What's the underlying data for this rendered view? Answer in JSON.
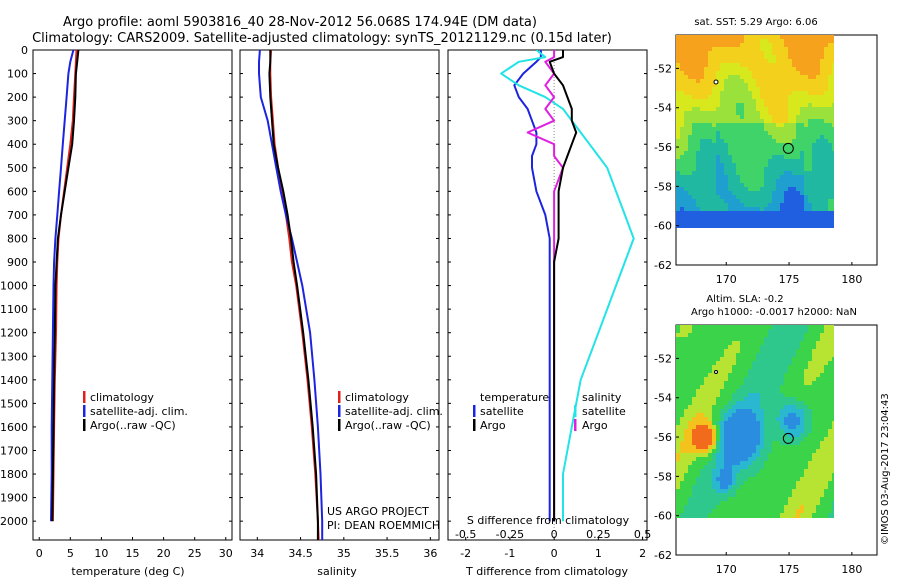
{
  "header": {
    "title_line1": "Argo profile: aoml 5903816_40 28-Nov-2012 56.068S 174.94E (DM data)",
    "title_line2": "Climatology: CARS2009. Satellite-adjusted climatology: synTS_20121129.nc (0.15d later)"
  },
  "colors": {
    "climatology": "#e0201a",
    "satellite": "#1c24e0",
    "argo": "#000000",
    "sal_satellite": "#22e3e6",
    "sal_argo": "#e020e0"
  },
  "chart_data": [
    {
      "id": "temperature",
      "type": "line",
      "xlabel": "temperature (deg C)",
      "ylabel": "",
      "xlim": [
        -1,
        31
      ],
      "ylim": [
        2080,
        0
      ],
      "xticks": [
        "0",
        "5",
        "10",
        "15",
        "20",
        "25",
        "30"
      ],
      "yticks": [
        "0",
        "100",
        "200",
        "300",
        "400",
        "500",
        "600",
        "700",
        "800",
        "900",
        "1000",
        "1100",
        "1200",
        "1300",
        "1400",
        "1500",
        "1600",
        "1700",
        "1800",
        "1900",
        "2000"
      ],
      "depth": [
        0,
        50,
        100,
        200,
        300,
        400,
        500,
        600,
        700,
        800,
        900,
        1000,
        1200,
        1400,
        1600,
        1800,
        2000
      ],
      "series": [
        {
          "name": "climatology",
          "values": [
            6.0,
            5.9,
            5.8,
            5.6,
            5.4,
            5.0,
            4.5,
            4.0,
            3.5,
            3.1,
            2.9,
            2.8,
            2.7,
            2.5,
            2.4,
            2.3,
            2.2
          ]
        },
        {
          "name": "satellite-adj. clim.",
          "values": [
            5.5,
            5.0,
            4.7,
            4.4,
            4.1,
            3.8,
            3.5,
            3.2,
            2.9,
            2.6,
            2.4,
            2.3,
            2.2,
            2.1,
            2.0,
            2.0,
            1.9
          ]
        },
        {
          "name": "Argo(..raw -QC)",
          "values": [
            6.3,
            6.1,
            5.9,
            5.8,
            5.6,
            5.3,
            4.7,
            4.1,
            3.5,
            3.0,
            2.8,
            2.6,
            2.5,
            2.4,
            2.3,
            2.2,
            2.1
          ]
        }
      ],
      "legend": {
        "items": [
          "climatology",
          "satellite-adj. clim.",
          "Argo(..raw -QC)"
        ],
        "position": "lower-right"
      }
    },
    {
      "id": "salinity",
      "type": "line",
      "xlabel": "salinity",
      "xlim": [
        33.8,
        36.1
      ],
      "ylim": [
        2080,
        0
      ],
      "xticks": [
        "34",
        "34.5",
        "35",
        "35.5",
        "36"
      ],
      "depth": [
        0,
        50,
        100,
        200,
        300,
        400,
        500,
        600,
        700,
        800,
        900,
        1000,
        1200,
        1400,
        1600,
        1800,
        2000,
        2080
      ],
      "series": [
        {
          "name": "climatology",
          "values": [
            34.16,
            34.15,
            34.15,
            34.16,
            34.18,
            34.2,
            34.24,
            34.29,
            34.33,
            34.37,
            34.4,
            34.45,
            34.52,
            34.58,
            34.63,
            34.67,
            34.7,
            34.71
          ]
        },
        {
          "name": "satellite-adj. clim.",
          "values": [
            34.03,
            34.02,
            34.02,
            34.04,
            34.12,
            34.17,
            34.22,
            34.27,
            34.33,
            34.4,
            34.46,
            34.52,
            34.61,
            34.66,
            34.7,
            34.73,
            34.75,
            34.75
          ]
        },
        {
          "name": "Argo(..raw -QC)",
          "values": [
            34.15,
            34.15,
            34.14,
            34.15,
            34.17,
            34.19,
            34.24,
            34.3,
            34.35,
            34.39,
            34.42,
            34.46,
            34.53,
            34.59,
            34.64,
            34.68,
            34.7,
            34.7
          ]
        }
      ],
      "legend": {
        "items": [
          "climatology",
          "satellite-adj. clim.",
          "Argo(..raw -QC)"
        ],
        "position": "lower-right"
      },
      "annotations": [
        "US ARGO PROJECT",
        "PI: DEAN ROEMMICH"
      ]
    },
    {
      "id": "difference",
      "type": "line",
      "xlabel": "T difference from climatology",
      "xlabel_top": "S difference from climatology",
      "xlim": [
        -2.4,
        2.1
      ],
      "ylim": [
        2080,
        0
      ],
      "xticks": [
        "-2",
        "-1",
        "0",
        "1",
        "2"
      ],
      "xticks_S": [
        "-0.5",
        "-0.25",
        "0",
        "0.25",
        "0.5"
      ],
      "depth": [
        0,
        30,
        50,
        100,
        150,
        200,
        250,
        300,
        350,
        400,
        450,
        500,
        600,
        700,
        800,
        900,
        1000,
        1200,
        1400,
        1600,
        1800,
        1900,
        2000
      ],
      "series": [
        {
          "name": "temperature satellite",
          "values": [
            -0.3,
            -0.3,
            -0.4,
            -0.7,
            -0.9,
            -0.8,
            -0.6,
            -0.5,
            -0.4,
            -0.4,
            -0.5,
            -0.5,
            -0.4,
            -0.2,
            -0.1,
            -0.1,
            -0.1,
            -0.1,
            -0.1,
            -0.1,
            -0.1,
            -0.1,
            -0.1
          ]
        },
        {
          "name": "temperature Argo",
          "values": [
            0.2,
            0.2,
            -0.1,
            0.0,
            0.2,
            0.3,
            0.4,
            0.4,
            0.5,
            0.4,
            0.3,
            0.2,
            0.1,
            0.1,
            0.1,
            0.0,
            0.0,
            0.0,
            0.0,
            0.0,
            0.0,
            0.0,
            0.0
          ]
        },
        {
          "name": "salinity satellite",
          "values": [
            -0.1,
            -0.05,
            -0.2,
            -0.3,
            -0.2,
            -0.05,
            0.05,
            0.1,
            0.15,
            0.2,
            0.25,
            0.3,
            0.35,
            0.4,
            0.45,
            0.4,
            0.35,
            0.25,
            0.15,
            0.1,
            0.05,
            0.05,
            0.05
          ]
        },
        {
          "name": "salinity Argo",
          "values": [
            0.0,
            0.0,
            -0.05,
            0.0,
            -0.05,
            0.0,
            -0.05,
            0.0,
            -0.15,
            0.0,
            0.0,
            0.05,
            0.0,
            0.0,
            0.0,
            0.0,
            0.0,
            0.0,
            0.0,
            0.0,
            0.0,
            0.0,
            0.0
          ]
        }
      ],
      "legend": {
        "temperature_header": "temperature",
        "salinity_header": "salinity",
        "items": [
          "satellite",
          "Argo",
          "satellite",
          "Argo"
        ]
      }
    },
    {
      "id": "sst_map",
      "type": "heatmap",
      "title": "sat. SST: 5.29  Argo: 6.06",
      "xticks": [
        "170",
        "175",
        "180"
      ],
      "yticks": [
        "-52",
        "-54",
        "-56",
        "-58",
        "-60",
        "-62"
      ],
      "argo_position": {
        "lon": 174.94,
        "lat": -56.068
      }
    },
    {
      "id": "sla_map",
      "type": "heatmap",
      "title_line1": "Altim. SLA: -0.2",
      "title_line2": "Argo h1000: -0.0017 h2000: NaN",
      "xticks": [
        "170",
        "175",
        "180"
      ],
      "yticks": [
        "-52",
        "-54",
        "-56",
        "-58",
        "-60",
        "-62"
      ],
      "argo_position": {
        "lon": 174.94,
        "lat": -56.068
      }
    }
  ],
  "footer": {
    "imos_stamp": "©IMOS 03-Aug-2017 23:04:43"
  }
}
